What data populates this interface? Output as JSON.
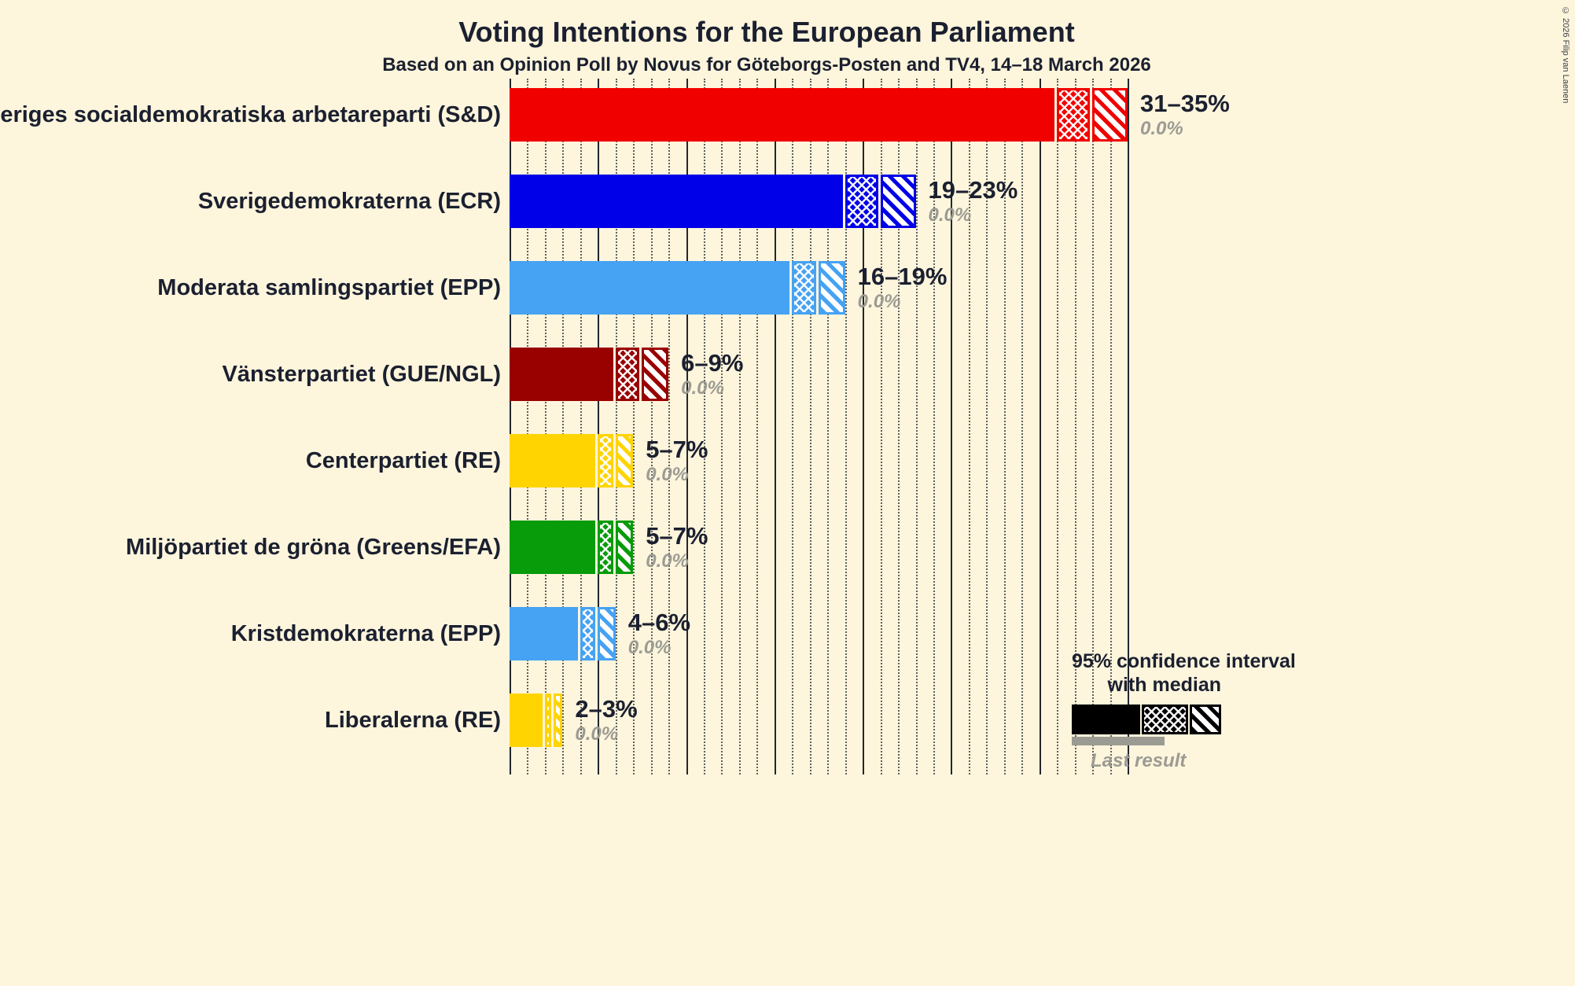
{
  "page": {
    "title": "Voting Intentions for the European Parliament",
    "subtitle": "Based on an Opinion Poll by Novus for Göteborgs-Posten and TV4, 14–18 March 2026",
    "copyright": "© 2026 Filip van Laenen",
    "background": "#fdf5dc"
  },
  "legend": {
    "line1": "95% confidence interval",
    "line2": "with median",
    "last_result": "Last result",
    "legend_bar_color": "#000000",
    "last_result_bar_color": "#9b9b93"
  },
  "chart_data": {
    "type": "bar",
    "orientation": "horizontal",
    "title": "Voting Intentions for the European Parliament",
    "subtitle": "Based on an Opinion Poll by Novus for Göteborgs-Posten and TV4, 14–18 March 2026",
    "x_axis": {
      "min": 0,
      "max": 35,
      "minor_step": 1,
      "major_step": 5,
      "unit": "%",
      "gridlines": true
    },
    "bar_semantics": "solid fill up to low bound, crosshatch from low to median, diagonal hatch from median to high bound of 95% confidence interval; gray italic value is last result",
    "bars": [
      {
        "label": "Sveriges socialdemokratiska arbetareparti (S&D)",
        "color": "#f10000",
        "low": 31,
        "median": 33,
        "high": 35,
        "range_label": "31–35%",
        "last_result": "0.0%"
      },
      {
        "label": "Sverigedemokraterna (ECR)",
        "color": "#0000e8",
        "low": 19,
        "median": 21,
        "high": 23,
        "range_label": "19–23%",
        "last_result": "0.0%"
      },
      {
        "label": "Moderata samlingspartiet (EPP)",
        "color": "#46a2f3",
        "low": 16,
        "median": 17.5,
        "high": 19,
        "range_label": "16–19%",
        "last_result": "0.0%"
      },
      {
        "label": "Vänsterpartiet (GUE/NGL)",
        "color": "#990000",
        "low": 6,
        "median": 7.5,
        "high": 9,
        "range_label": "6–9%",
        "last_result": "0.0%"
      },
      {
        "label": "Centerpartiet (RE)",
        "color": "#ffd400",
        "low": 5,
        "median": 6,
        "high": 7,
        "range_label": "5–7%",
        "last_result": "0.0%"
      },
      {
        "label": "Miljöpartiet de gröna (Greens/EFA)",
        "color": "#089b0a",
        "low": 5,
        "median": 6,
        "high": 7,
        "range_label": "5–7%",
        "last_result": "0.0%"
      },
      {
        "label": "Kristdemokraterna (EPP)",
        "color": "#46a2f3",
        "low": 4,
        "median": 5,
        "high": 6,
        "range_label": "4–6%",
        "last_result": "0.0%"
      },
      {
        "label": "Liberalerna (RE)",
        "color": "#ffd400",
        "low": 2,
        "median": 2.5,
        "high": 3,
        "range_label": "2–3%",
        "last_result": "0.0%"
      }
    ]
  }
}
